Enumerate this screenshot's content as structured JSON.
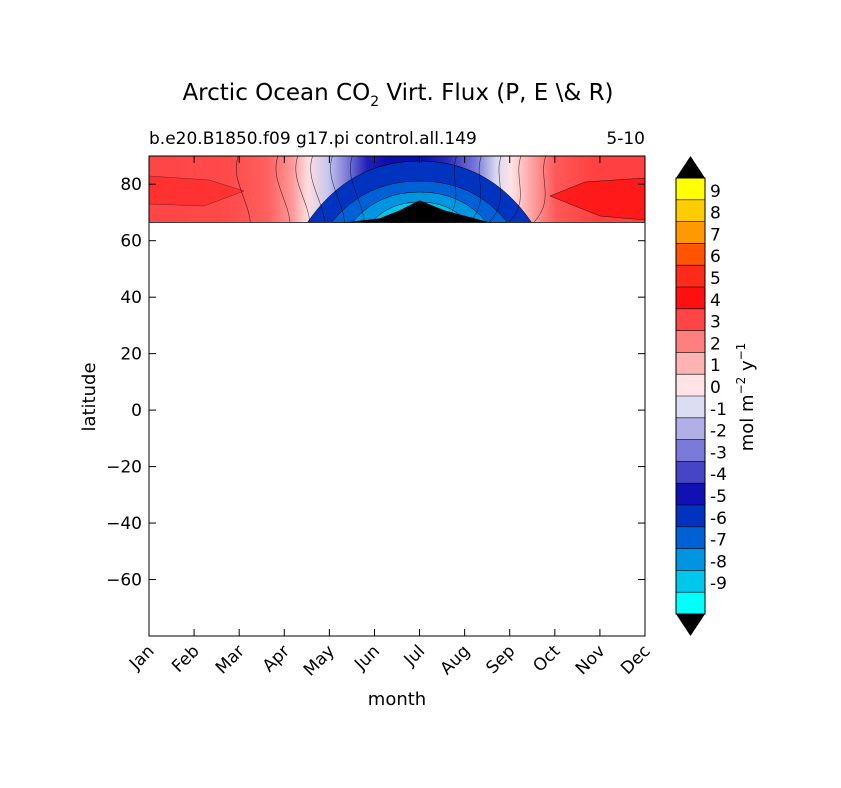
{
  "chart_data": {
    "type": "heatmap",
    "title_main": "Arctic Ocean CO",
    "title_sub": "2",
    "title_tail": " Virt. Flux (P, E \\& R)",
    "subtitle_left": "b.e20.B1850.f09 g17.pi control.all.149",
    "subtitle_right": "5-10",
    "xlabel": "month",
    "ylabel": "latitude",
    "x_categories": [
      "Jan",
      "Feb",
      "Mar",
      "Apr",
      "May",
      "Jun",
      "Jul",
      "Aug",
      "Sep",
      "Oct",
      "Nov",
      "Dec"
    ],
    "ylim": [
      -80,
      90
    ],
    "yticks": [
      80,
      60,
      40,
      20,
      0,
      -20,
      -40,
      -60
    ],
    "ytick_labels": [
      "80",
      "60",
      "40",
      "20",
      "0",
      "−20",
      "−40",
      "−60"
    ],
    "data_lat_range": [
      66.5,
      90
    ],
    "colorbar": {
      "label_main": "mol m",
      "label_sup1": "−2",
      "label_mid": " y",
      "label_sup2": "−1",
      "levels": [
        "9",
        "8",
        "7",
        "6",
        "5",
        "4",
        "3",
        "2",
        "1",
        "0",
        "-1",
        "-2",
        "-3",
        "-4",
        "-5",
        "-6",
        "-7",
        "-8",
        "-9"
      ],
      "colors_top_to_bottom": [
        "#ffff00",
        "#ffcc00",
        "#ff9900",
        "#ff5500",
        "#ff2a1a",
        "#ff1010",
        "#ff4545",
        "#ff7f7f",
        "#ffb3b3",
        "#ffe3e6",
        "#dcdcf2",
        "#b0b0e6",
        "#7a7ad9",
        "#4545c6",
        "#1010b3",
        "#0033bf",
        "#0060d6",
        "#0095e0",
        "#00c8ec",
        "#00ffff"
      ],
      "extend_over_color": "#000000",
      "extend_under_color": "#000000"
    },
    "monthly_flux_mean": [
      3.5,
      3.2,
      2.8,
      1.5,
      -0.5,
      -4.5,
      -8.5,
      -5.5,
      0.5,
      2.5,
      4.0,
      4.5
    ],
    "grid": false,
    "colors": {
      "frame": "#000000",
      "contour_line": "#000000",
      "background": "#ffffff"
    }
  }
}
